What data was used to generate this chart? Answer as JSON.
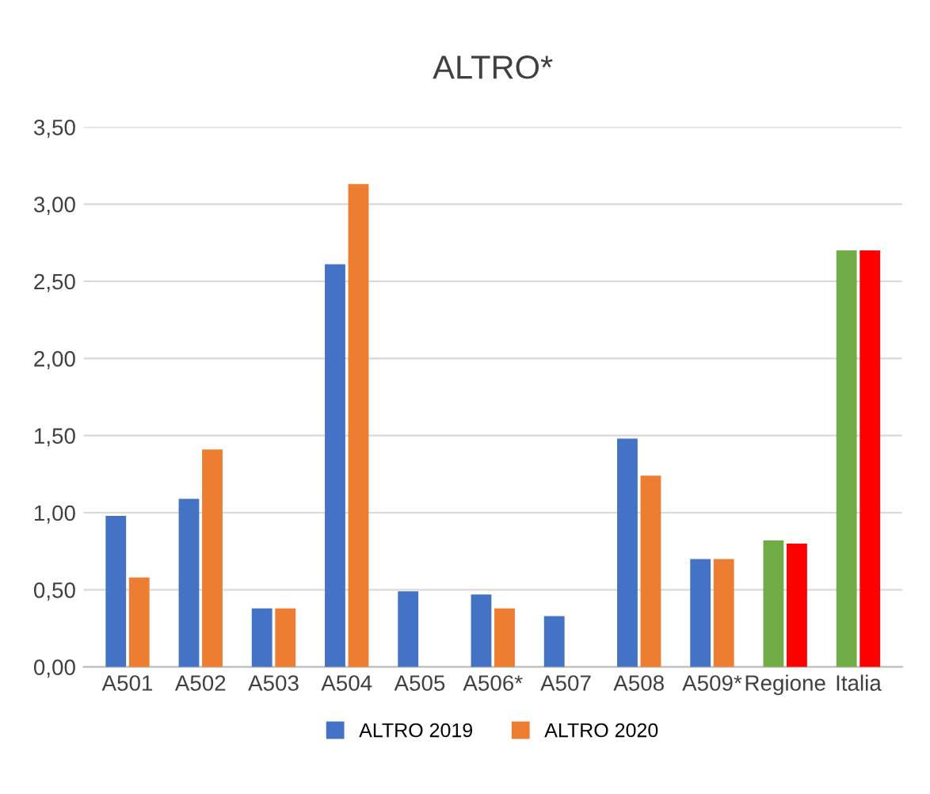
{
  "chart_data": {
    "type": "bar",
    "title": "ALTRO*",
    "categories": [
      "A501",
      "A502",
      "A503",
      "A504",
      "A505",
      "A506*",
      "A507",
      "A508",
      "A509*",
      "Regione",
      "Italia"
    ],
    "series": [
      {
        "name": "ALTRO 2019",
        "color": "#4472c4",
        "colors": [
          "#4472c4",
          "#4472c4",
          "#4472c4",
          "#4472c4",
          "#4472c4",
          "#4472c4",
          "#4472c4",
          "#4472c4",
          "#4472c4",
          "#70ad47",
          "#70ad47"
        ],
        "values": [
          0.98,
          1.09,
          0.38,
          2.61,
          0.49,
          0.47,
          0.33,
          1.48,
          0.7,
          0.82,
          2.7
        ]
      },
      {
        "name": "ALTRO 2020",
        "color": "#ed7d31",
        "colors": [
          "#ed7d31",
          "#ed7d31",
          "#ed7d31",
          "#ed7d31",
          "#ed7d31",
          "#ed7d31",
          "#ed7d31",
          "#ed7d31",
          "#ed7d31",
          "#ff0000",
          "#ff0000"
        ],
        "values": [
          0.58,
          1.41,
          0.38,
          3.13,
          null,
          0.38,
          null,
          1.24,
          0.7,
          0.8,
          2.7
        ]
      }
    ],
    "ylim": [
      0,
      3.5
    ],
    "yticks": [
      {
        "value": 0,
        "label": "0,00"
      },
      {
        "value": 0.5,
        "label": "0,50"
      },
      {
        "value": 1,
        "label": "1,00"
      },
      {
        "value": 1.5,
        "label": "1,50"
      },
      {
        "value": 2,
        "label": "2,00"
      },
      {
        "value": 2.5,
        "label": "2,50"
      },
      {
        "value": 3,
        "label": "3,00"
      },
      {
        "value": 3.5,
        "label": "3,50"
      }
    ],
    "grid": "y",
    "legend": "bottom"
  }
}
